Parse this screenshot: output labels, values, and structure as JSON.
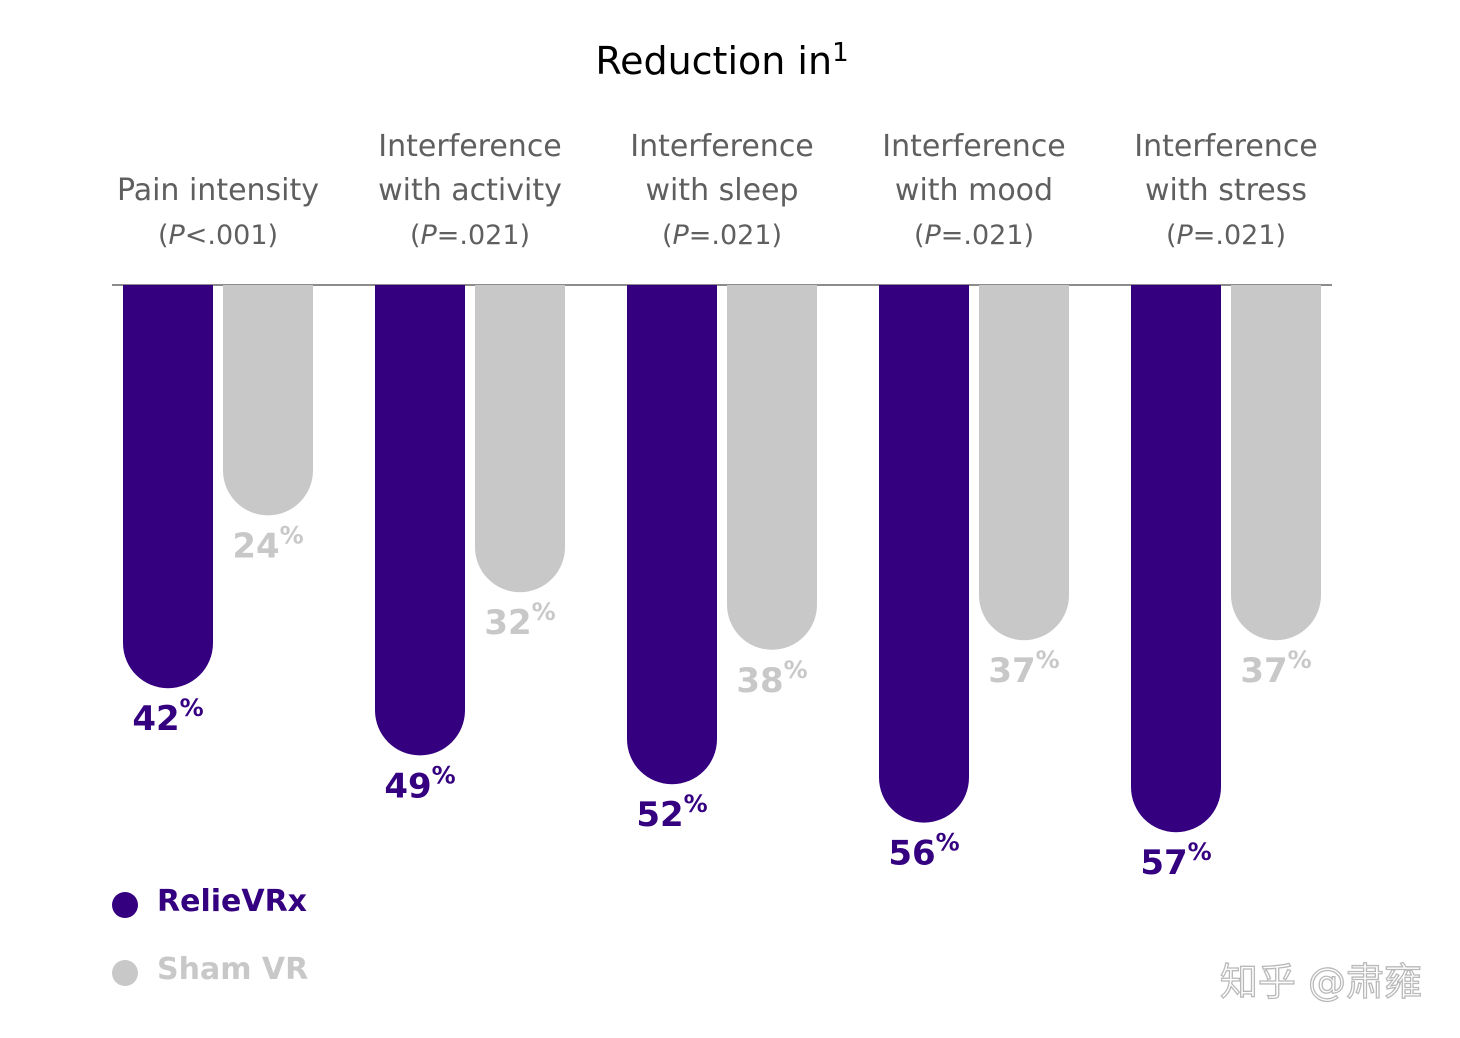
{
  "chart_data": {
    "type": "bar",
    "orientation": "downward",
    "title": "Reduction in",
    "title_superscript": "1",
    "categories": [
      {
        "lines": [
          "Pain intensity"
        ],
        "p_prefix": "(",
        "p_italic": "P",
        "p_suffix": "<.001)"
      },
      {
        "lines": [
          "Interference",
          "with activity"
        ],
        "p_prefix": "(",
        "p_italic": "P",
        "p_suffix": "=.021)"
      },
      {
        "lines": [
          "Interference",
          "with sleep"
        ],
        "p_prefix": "(",
        "p_italic": "P",
        "p_suffix": "=.021)"
      },
      {
        "lines": [
          "Interference",
          "with mood"
        ],
        "p_prefix": "(",
        "p_italic": "P",
        "p_suffix": "=.021)"
      },
      {
        "lines": [
          "Interference",
          "with stress"
        ],
        "p_prefix": "(",
        "p_italic": "P",
        "p_suffix": "=.021)"
      }
    ],
    "series": [
      {
        "name": "RelieVRx",
        "color": "#340080",
        "values": [
          42,
          49,
          52,
          56,
          57
        ],
        "labels": [
          "42",
          "49",
          "52",
          "56",
          "57"
        ]
      },
      {
        "name": "Sham VR",
        "color": "#c8c8c8",
        "values": [
          24,
          32,
          38,
          37,
          37
        ],
        "labels": [
          "24",
          "32",
          "38",
          "37",
          "37"
        ]
      }
    ],
    "value_unit": "%",
    "legend": [
      "RelieVRx",
      "Sham VR"
    ],
    "legend_position": "bottom-left",
    "ylim": [
      0,
      60
    ]
  },
  "watermark": "知乎 @肃雍",
  "colors": {
    "baseline": "#8c8c8c",
    "category_text": "#5f5f5f",
    "title_text": "#000000",
    "value_text_relievrx": "#340080",
    "value_text_sham": "#c8c8c8"
  }
}
